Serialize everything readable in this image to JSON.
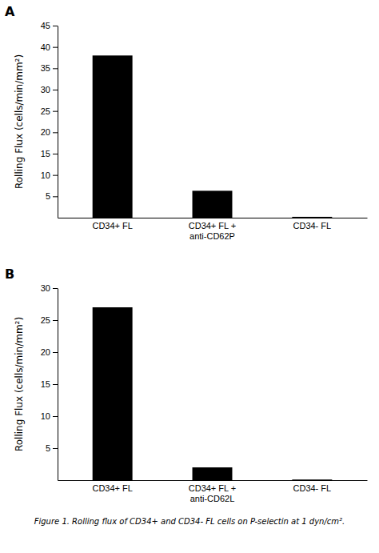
{
  "chart_data": [
    {
      "type": "bar",
      "title": "A",
      "categories": [
        "CD34+ FL",
        "CD34+ FL +\nanti-CD62P",
        "CD34- FL"
      ],
      "values": [
        38,
        6.3,
        0.2
      ],
      "ylabel": "Rolling Flux (cells/min/mm²)",
      "ylim": [
        0,
        45
      ],
      "yticks": [
        5,
        10,
        15,
        20,
        25,
        30,
        35,
        40,
        45
      ],
      "color": "#000000",
      "grid": false
    },
    {
      "type": "bar",
      "title": "B",
      "categories": [
        "CD34+ FL",
        "CD34+ FL +\nanti-CD62L",
        "CD34- FL"
      ],
      "values": [
        27,
        2.0,
        0.1
      ],
      "ylabel": "Rolling Flux (cells/min/mm²)",
      "ylim": [
        0,
        30
      ],
      "yticks": [
        5,
        10,
        15,
        20,
        25,
        30
      ],
      "color": "#000000",
      "grid": false
    }
  ],
  "caption": "Figure 1. Rolling flux of CD34+ and CD34- FL cells on P-selectin at 1 dyn/cm²."
}
